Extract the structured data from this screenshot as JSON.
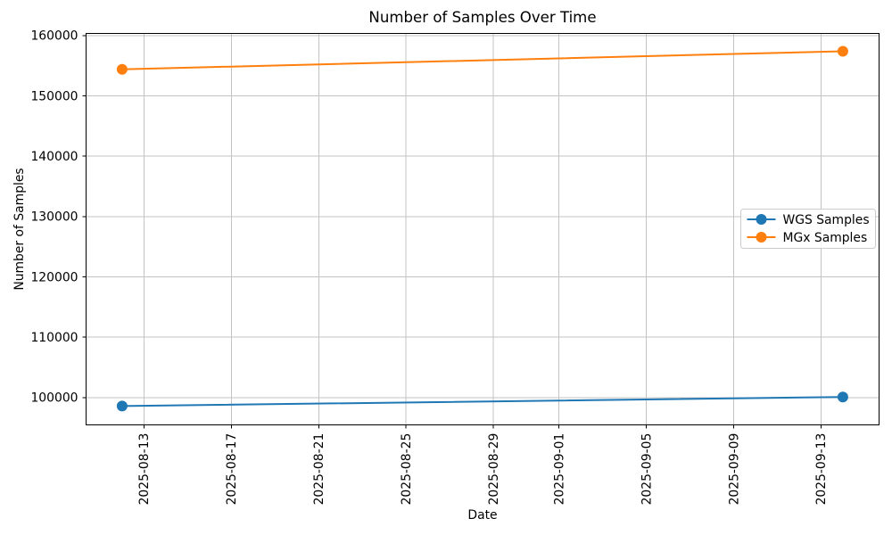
{
  "chart_data": {
    "type": "line",
    "title": "Number of Samples Over Time",
    "xlabel": "Date",
    "ylabel": "Number of Samples",
    "x": [
      "2025-08-12",
      "2025-09-14"
    ],
    "series": [
      {
        "name": "WGS Samples",
        "color": "#1f77b4",
        "values": [
          98600,
          100100
        ]
      },
      {
        "name": "MGx Samples",
        "color": "#ff7f0e",
        "values": [
          154400,
          157400
        ]
      }
    ],
    "x_tick_labels": [
      "2025-08-13",
      "2025-08-17",
      "2025-08-21",
      "2025-08-25",
      "2025-08-29",
      "2025-09-01",
      "2025-09-05",
      "2025-09-09",
      "2025-09-13"
    ],
    "y_tick_values": [
      100000,
      110000,
      120000,
      130000,
      140000,
      150000,
      160000
    ],
    "ylim": [
      95450,
      160320
    ],
    "x_margin_frac": 0.05,
    "grid": true,
    "legend": {
      "position": "center-right"
    },
    "colors": {
      "grid": "#c3c3c3",
      "axis": "#000000",
      "legend_border": "#cccccc",
      "background": "#ffffff"
    }
  }
}
